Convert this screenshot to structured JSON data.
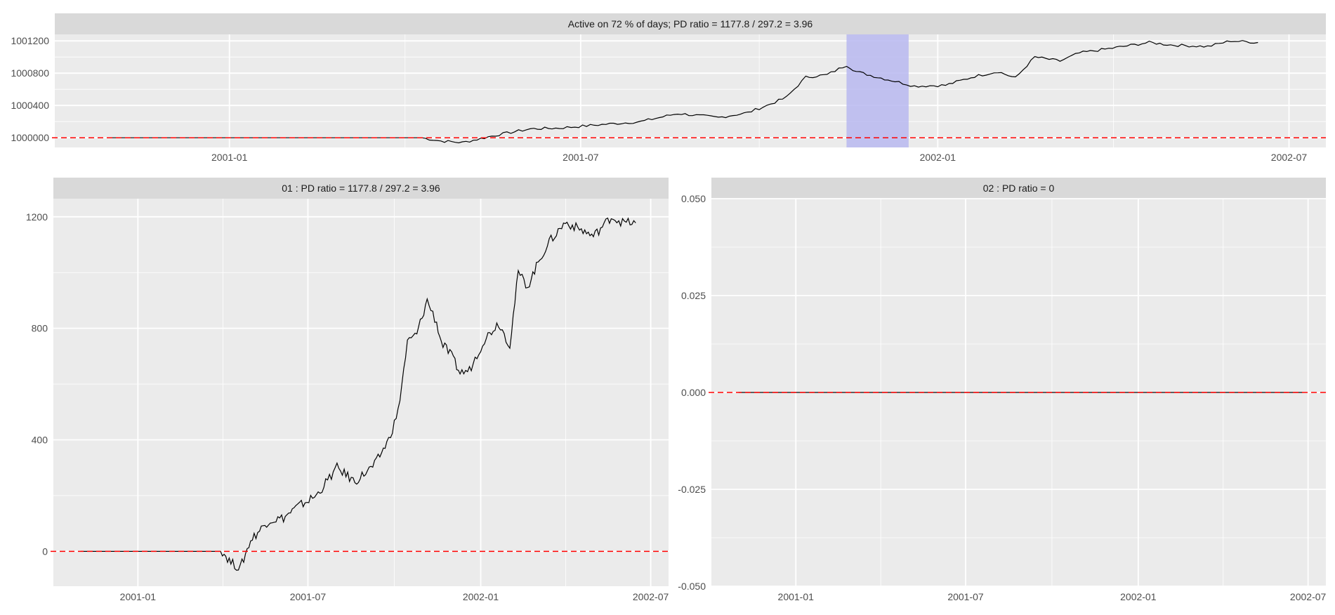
{
  "colors": {
    "panel_bg": "#EBEBEB",
    "strip_bg": "#D9D9D9",
    "grid": "#FFFFFF",
    "line": "#000000",
    "zero_line": "#FF0000",
    "highlight": "#B8B8F0",
    "text": "#4D4D4D"
  },
  "chart_data": [
    {
      "type": "line",
      "title": "Active on 72 % of days; PD ratio =  1177.8 / 297.2 = 3.96",
      "xlabel": "",
      "ylabel": "",
      "x_ticks": [
        "2001-01",
        "2001-07",
        "2002-01",
        "2002-07"
      ],
      "x_range": [
        "2000-10-03",
        "2002-07-20"
      ],
      "y_ticks": [
        "1000000",
        "1000400",
        "1000800",
        "1001200"
      ],
      "ylim": [
        999880,
        1001280
      ],
      "reference_line": {
        "y": 1000000,
        "style": "dashed",
        "color": "#FF0000"
      },
      "highlight_period": [
        "2001-11-15",
        "2001-12-17"
      ],
      "grid": true,
      "series": [
        {
          "x": [
            "2000-11-01",
            "2001-02-01",
            "2001-04-10",
            "2001-04-20",
            "2001-05-01",
            "2001-05-20",
            "2001-06-05",
            "2001-06-20",
            "2001-07-10",
            "2001-08-01",
            "2001-08-20",
            "2001-09-10",
            "2001-09-25",
            "2001-10-05",
            "2001-10-15",
            "2001-10-25",
            "2001-11-05",
            "2001-11-15",
            "2001-11-20",
            "2001-12-01",
            "2001-12-10",
            "2001-12-20",
            "2002-01-05",
            "2002-01-20",
            "2002-02-01",
            "2002-02-10",
            "2002-02-20",
            "2002-03-05",
            "2002-03-15",
            "2002-04-01",
            "2002-04-20",
            "2002-05-01",
            "2002-05-20",
            "2002-06-01",
            "2002-06-15"
          ],
          "values": [
            1000000,
            1000000,
            1000000,
            999960,
            999940,
            1000040,
            1000110,
            1000120,
            1000160,
            1000200,
            1000300,
            1000250,
            1000310,
            1000400,
            1000500,
            1000750,
            1000780,
            1000900,
            1000820,
            1000750,
            1000700,
            1000640,
            1000650,
            1000760,
            1000820,
            1000740,
            1001000,
            1000950,
            1001050,
            1001110,
            1001180,
            1001150,
            1001130,
            1001200,
            1001180
          ]
        }
      ]
    },
    {
      "type": "line",
      "title": "01 : PD ratio =  1177.8 / 297.2 = 3.96",
      "xlabel": "",
      "ylabel": "",
      "x_ticks": [
        "2001-01",
        "2001-07",
        "2002-01",
        "2002-07"
      ],
      "x_range": [
        "2000-10-03",
        "2002-07-20"
      ],
      "y_ticks": [
        "0",
        "400",
        "800",
        "1200"
      ],
      "ylim": [
        -125,
        1265
      ],
      "reference_line": {
        "y": 0,
        "style": "dashed",
        "color": "#FF0000"
      },
      "grid": true,
      "series": [
        {
          "x": [
            "2000-11-01",
            "2001-02-01",
            "2001-04-01",
            "2001-04-10",
            "2001-04-20",
            "2001-05-01",
            "2001-05-20",
            "2001-06-05",
            "2001-06-20",
            "2001-07-10",
            "2001-08-01",
            "2001-08-20",
            "2001-09-10",
            "2001-09-25",
            "2001-10-05",
            "2001-10-15",
            "2001-10-25",
            "2001-11-05",
            "2001-11-15",
            "2001-11-20",
            "2001-12-01",
            "2001-12-10",
            "2001-12-20",
            "2002-01-05",
            "2002-01-20",
            "2002-02-01",
            "2002-02-10",
            "2002-02-20",
            "2002-03-05",
            "2002-03-15",
            "2002-04-01",
            "2002-04-20",
            "2002-05-01",
            "2002-05-20",
            "2002-06-01",
            "2002-06-15"
          ],
          "values": [
            0,
            0,
            0,
            -40,
            -60,
            40,
            110,
            120,
            160,
            200,
            300,
            250,
            310,
            400,
            500,
            750,
            780,
            900,
            820,
            750,
            700,
            640,
            650,
            760,
            820,
            740,
            1000,
            950,
            1050,
            1110,
            1180,
            1150,
            1130,
            1200,
            1180,
            1178
          ]
        }
      ]
    },
    {
      "type": "line",
      "title": "02 : PD ratio =  0",
      "xlabel": "",
      "ylabel": "",
      "x_ticks": [
        "2001-01",
        "2001-07",
        "2002-01",
        "2002-07"
      ],
      "x_range": [
        "2000-10-03",
        "2002-07-20"
      ],
      "y_ticks": [
        "-0.050",
        "-0.025",
        "0.000",
        "0.025",
        "0.050"
      ],
      "ylim": [
        -0.05,
        0.05
      ],
      "reference_line": {
        "y": 0,
        "style": "dashed",
        "color": "#FF0000"
      },
      "grid": true,
      "series": [
        {
          "x": [
            "2000-11-01",
            "2002-06-25"
          ],
          "values": [
            0,
            0
          ]
        }
      ]
    }
  ]
}
